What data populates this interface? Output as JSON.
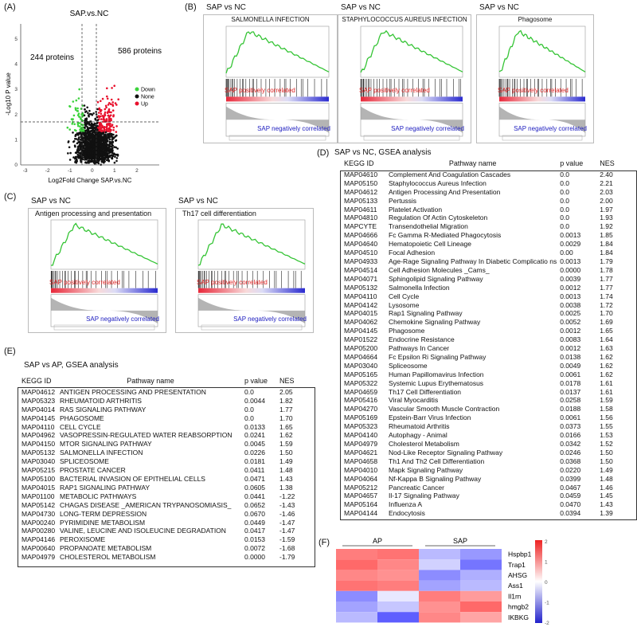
{
  "panelA": {
    "letter": "(A)",
    "title": "SAP.vs.NC",
    "left_count": "244  proteins",
    "right_count": "586 proteins",
    "xlabel": "Log2Fold Change  SAP.vs.NC",
    "ylabel": "-Log10 P value",
    "xticks": [
      "-3",
      "-2",
      "-1",
      "0",
      "1",
      "2"
    ],
    "yticks": [
      "0",
      "1",
      "2",
      "3",
      "4",
      "5"
    ],
    "legend": [
      {
        "label": "Down",
        "color": "#3cd33c"
      },
      {
        "label": "None",
        "color": "#111111"
      },
      {
        "label": "Up",
        "color": "#e8112d"
      }
    ]
  },
  "panelB": {
    "letter": "(B)",
    "plots": [
      {
        "header": "SAP vs NC",
        "title": "SALMONELLA INFECTION"
      },
      {
        "header": "SAP vs NC",
        "title": "STAPHYLOCOCCUS AUREUS INFECTION"
      },
      {
        "header": "SAP vs NC",
        "title": "Phagosome"
      }
    ],
    "pos_label": "SAP positively correlated",
    "neg_label": "SAP negatively correlated"
  },
  "panelC": {
    "letter": "(C)",
    "plots": [
      {
        "header": "SAP vs NC",
        "title": "Antigen processing and presentation"
      },
      {
        "header": "SAP vs NC",
        "title": "Th17 cell differentiation"
      }
    ],
    "pos_label": "SAP positively correlated",
    "neg_label": "SAP negatively correlated"
  },
  "panelD": {
    "letter": "(D)",
    "title": "SAP vs NC,  GSEA analysis",
    "columns": [
      "KEGG ID",
      "Pathway name",
      "p value",
      "NES"
    ],
    "rows": [
      [
        "MAP04610",
        "Complement And Coagulation Cascades",
        "0.0",
        "2.40"
      ],
      [
        "MAP05150",
        "Staphylococcus Aureus Infection",
        "0.0",
        "2.21"
      ],
      [
        "MAP04612",
        "Antigen Processing And Presentation",
        "0.0",
        "2.03"
      ],
      [
        "MAP05133",
        "Pertussis",
        "0.0",
        "2.00"
      ],
      [
        "MAP04611",
        "Platelet Activation",
        "0.0",
        "1.97"
      ],
      [
        "MAP04810",
        "Regulation Of Actin Cytoskeleton",
        "0.0",
        "1.93"
      ],
      [
        "MAPCYTE",
        "Transendothelial Migration",
        "0.0",
        "1.92"
      ],
      [
        "MAP04666",
        "Fc Gamma R-Mediated Phagocytosis",
        "0.0013",
        "1.85"
      ],
      [
        "MAP04640",
        "Hematopoietic Cell Lineage",
        "0.0029",
        "1.84"
      ],
      [
        "MAP04510",
        "Focal Adhesion",
        "0.00",
        "1.84"
      ],
      [
        "MAP04933",
        "Age-Rage Signaling Pathway In Diabetic Complicatio ns",
        "0.0013",
        "1.79"
      ],
      [
        "MAP04514",
        "Cell Adhesion Molecules _Cams_",
        "0.0000",
        "1.78"
      ],
      [
        "MAP04071",
        "Sphingolipid Signaling Pathway",
        "0.0039",
        "1.77"
      ],
      [
        "MAP05132",
        "Salmonella Infection",
        "0.0012",
        "1.77"
      ],
      [
        "MAP04110",
        "Cell Cycle",
        "0.0013",
        "1.74"
      ],
      [
        "MAP04142",
        "Lysosome",
        "0.0038",
        "1.72"
      ],
      [
        "MAP04015",
        "Rap1 Signaling Pathway",
        "0.0025",
        "1.70"
      ],
      [
        "MAP04062",
        "Chemokine Signaling Pathway",
        "0.0052",
        "1.69"
      ],
      [
        "MAP04145",
        "Phagosome",
        "0.0012",
        "1.65"
      ],
      [
        "MAP01522",
        "Endocrine Resistance",
        "0.0083",
        "1.64"
      ],
      [
        "MAP05200",
        "Pathways In Cancer",
        "0.0012",
        "1.63"
      ],
      [
        "MAP04664",
        "Fc Epsilon Ri Signaling Pathway",
        "0.0138",
        "1.62"
      ],
      [
        "MAP03040",
        "Spliceosome",
        "0.0049",
        "1.62"
      ],
      [
        "MAP05165",
        "Human Papillomavirus Infection",
        "0.0061",
        "1.62"
      ],
      [
        "MAP05322",
        "Systemic Lupus Erythematosus",
        "0.0178",
        "1.61"
      ],
      [
        "MAP04659",
        "Th17 Cell Differentiation",
        "0.0137",
        "1.61"
      ],
      [
        "MAP05416",
        "Viral Myocarditis",
        "0.0258",
        "1.59"
      ],
      [
        "MAP04270",
        "Vascular Smooth Muscle Contraction",
        "0.0188",
        "1.58"
      ],
      [
        "MAP05169",
        "Epstein-Barr Virus Infection",
        "0.0061",
        "1.56"
      ],
      [
        "MAP05323",
        "Rheumatoid Arthritis",
        "0.0373",
        "1.55"
      ],
      [
        "MAP04140",
        "Autophagy - Animal",
        "0.0166",
        "1.53"
      ],
      [
        "MAP04979",
        "Cholesterol Metabolism",
        "0.0342",
        "1.52"
      ],
      [
        "MAP04621",
        "Nod-Like Receptor Signaling Pathway",
        "0.0246",
        "1.50"
      ],
      [
        "MAP04658",
        "Th1 And Th2 Cell Differentiation",
        "0.0368",
        "1.50"
      ],
      [
        "MAP04010",
        "Mapk Signaling Pathway",
        "0.0220",
        "1.49"
      ],
      [
        "MAP04064",
        "Nf-Kappa B Signaling Pathway",
        "0.0399",
        "1.48"
      ],
      [
        "MAP05212",
        "Pancreatic Cancer",
        "0.0467",
        "1.46"
      ],
      [
        "MAP04657",
        "Il-17 Signaling Pathway",
        "0.0459",
        "1.45"
      ],
      [
        "MAP05164",
        "Influenza A",
        "0.0470",
        "1.43"
      ],
      [
        "MAP04144",
        "Endocytosis",
        "0.0394",
        "1.39"
      ]
    ]
  },
  "panelE": {
    "letter": "(E)",
    "title": "SAP vs AP,  GSEA analysis",
    "columns": [
      "KEGG ID",
      "Pathway name",
      "p value",
      "NES"
    ],
    "rows": [
      [
        "MAP04612",
        "ANTIGEN PROCESSING AND PRESENTATION",
        "0.0",
        "2.05"
      ],
      [
        "MAP05323",
        "RHEUMATOID ARTHRITIS",
        "0.0044",
        "1.82"
      ],
      [
        "MAP04014",
        "RAS SIGNALING PATHWAY",
        "0.0",
        "1.77"
      ],
      [
        "MAP04145",
        "PHAGOSOME",
        "0.0",
        "1.70"
      ],
      [
        "MAP04110",
        "CELL CYCLE",
        "0.0133",
        "1.65"
      ],
      [
        "MAP04962",
        "VASOPRESSIN-REGULATED WATER REABSORPTION",
        "0.0241",
        "1.62"
      ],
      [
        "MAP04150",
        "MTOR SIGNALING PATHWAY",
        "0.0045",
        "1.59"
      ],
      [
        "MAP05132",
        "SALMONELLA INFECTION",
        "0.0226",
        "1.50"
      ],
      [
        "MAP03040",
        "SPLICEOSOME",
        "0.0181",
        "1.49"
      ],
      [
        "MAP05215",
        "PROSTATE CANCER",
        "0.0411",
        "1.48"
      ],
      [
        "MAP05100",
        "BACTERIAL INVASION OF EPITHELIAL CELLS",
        "0.0471",
        "1.43"
      ],
      [
        "MAP04015",
        "RAP1 SIGNALING PATHWAY",
        "0.0605",
        "1.38"
      ],
      [
        "MAP01100",
        "METABOLIC PATHWAYS",
        "0.0441",
        "-1.22"
      ],
      [
        "MAP05142",
        "CHAGAS DISEASE _AMERICAN TRYPANOSOMIASIS_",
        "0.0652",
        "-1.43"
      ],
      [
        "MAP04730",
        "LONG-TERM DEPRESSION",
        "0.0670",
        "-1.46"
      ],
      [
        "MAP00240",
        "PYRIMIDINE METABOLISM",
        "0.0449",
        "-1.47"
      ],
      [
        "MAP00280",
        "VALINE, LEUCINE AND ISOLEUCINE DEGRADATION",
        "0.0417",
        "-1.47"
      ],
      [
        "MAP04146",
        "PEROXISOME",
        "0.0153",
        "-1.59"
      ],
      [
        "MAP00640",
        "PROPANOATE METABOLISM",
        "0.0072",
        "-1.68"
      ],
      [
        "MAP04979",
        "CHOLESTEROL METABOLISM",
        "0.0000",
        "-1.79"
      ]
    ]
  },
  "panelF": {
    "letter": "(F)",
    "groups": [
      "AP",
      "SAP"
    ],
    "genes": [
      "Hspbp1",
      "Trap1",
      "AHSG",
      "Ass1",
      "Il1rn",
      "hmgb2",
      "IKBKG"
    ],
    "scale_ticks": [
      "2",
      "1",
      "0",
      "-1",
      "-2"
    ],
    "values": [
      [
        1.3,
        1.4,
        -0.6,
        -0.9
      ],
      [
        1.5,
        1.2,
        -0.4,
        -1.2
      ],
      [
        1.2,
        1.1,
        -1.0,
        -0.7
      ],
      [
        1.4,
        1.3,
        -0.8,
        -0.6
      ],
      [
        -1.0,
        -0.2,
        1.3,
        1.0
      ],
      [
        -0.8,
        -0.5,
        1.1,
        1.5
      ],
      [
        -0.6,
        -1.4,
        1.2,
        0.9
      ]
    ]
  },
  "chart_data": [
    {
      "type": "scatter",
      "title": "SAP.vs.NC",
      "xlabel": "Log2Fold Change  SAP.vs.NC",
      "ylabel": "-Log10 P value",
      "xlim": [
        -3.2,
        3.0
      ],
      "ylim": [
        0,
        5.6
      ],
      "series": [
        {
          "name": "Down",
          "count": 244
        },
        {
          "name": "None"
        },
        {
          "name": "Up",
          "count": 586
        }
      ]
    },
    {
      "type": "heatmap",
      "rows": [
        "Hspbp1",
        "Trap1",
        "AHSG",
        "Ass1",
        "Il1rn",
        "hmgb2",
        "IKBKG"
      ],
      "columns": [
        "AP",
        "AP",
        "SAP",
        "SAP"
      ],
      "scale": [
        -2,
        2
      ]
    }
  ]
}
